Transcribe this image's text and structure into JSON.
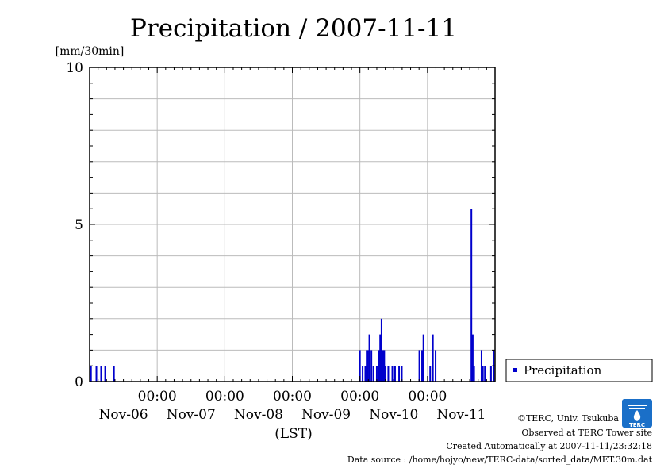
{
  "chart_data": {
    "type": "bar",
    "title": "Precipitation / 2007-11-11",
    "ylabel": "[mm/30min]",
    "xlabel": "(LST)",
    "ylim": [
      0,
      10
    ],
    "yticks": [
      "0",
      "5",
      "10"
    ],
    "x_range_days": [
      0,
      6.0
    ],
    "x_time_ticks": [
      "00:00",
      "00:00",
      "00:00",
      "00:00",
      "00:00"
    ],
    "x_date_labels": [
      "Nov-06",
      "Nov-07",
      "Nov-08",
      "Nov-09",
      "Nov-10",
      "Nov-11"
    ],
    "grid": true,
    "series": [
      {
        "name": "Precipitation",
        "color": "#0000cc",
        "x": [
          0.02,
          0.1,
          0.17,
          0.23,
          0.36,
          4.0,
          4.04,
          4.08,
          4.1,
          4.12,
          4.14,
          4.17,
          4.2,
          4.25,
          4.28,
          4.3,
          4.32,
          4.34,
          4.36,
          4.38,
          4.42,
          4.48,
          4.52,
          4.58,
          4.62,
          4.88,
          4.92,
          4.94,
          5.04,
          5.08,
          5.12,
          5.65,
          5.67,
          5.69,
          5.8,
          5.82,
          5.85,
          5.94,
          5.98
        ],
        "values": [
          0.5,
          0.5,
          0.5,
          0.5,
          0.5,
          1.0,
          0.5,
          0.5,
          1.0,
          1.0,
          1.5,
          1.0,
          0.5,
          0.5,
          1.0,
          1.5,
          2.0,
          1.0,
          1.0,
          0.5,
          0.5,
          0.5,
          0.5,
          0.5,
          0.5,
          1.0,
          1.0,
          1.5,
          0.5,
          1.5,
          1.0,
          5.5,
          1.5,
          0.5,
          1.0,
          0.5,
          0.5,
          0.5,
          1.0
        ]
      }
    ],
    "legend": {
      "label": "Precipitation",
      "position": "right"
    }
  },
  "footer": {
    "copyright": "©TERC, Univ. Tsukuba",
    "observed": "Observed at TERC Tower site",
    "created": "Created Automatically at 2007-11-11/23:32:18",
    "source": "Data source : /home/hojyo/new/TERC-data/sorted_data/MET.30m.dat"
  },
  "logo": {
    "text": "TERC",
    "color": "#1a6fc8"
  }
}
